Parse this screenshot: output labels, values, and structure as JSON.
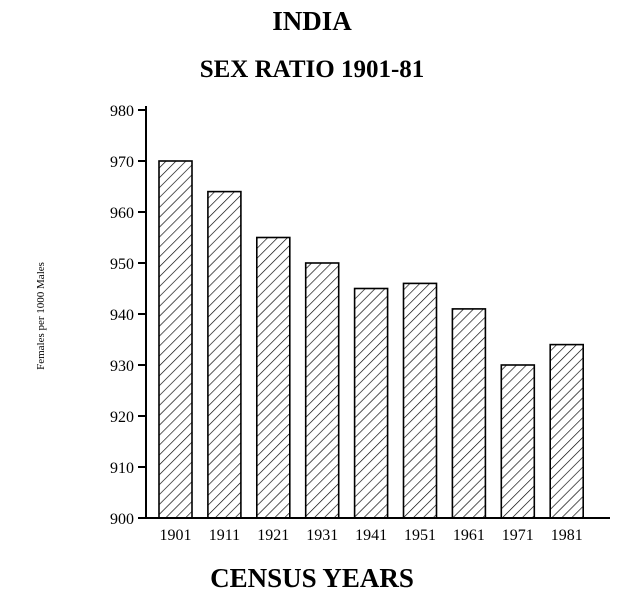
{
  "chart_data": {
    "type": "bar",
    "title": "INDIA",
    "subtitle": "SEX RATIO 1901-81",
    "xlabel": "CENSUS YEARS",
    "ylabel": "Females per 1000 Males",
    "categories": [
      "1901",
      "1911",
      "1921",
      "1931",
      "1941",
      "1951",
      "1961",
      "1971",
      "1981"
    ],
    "values": [
      970,
      964,
      955,
      950,
      945,
      946,
      941,
      930,
      934
    ],
    "ylim": [
      900,
      980
    ],
    "yticks": [
      "900",
      "910",
      "920",
      "930",
      "940",
      "950",
      "960",
      "970",
      "980"
    ],
    "grid": false,
    "bar_fill": "hatched",
    "colors": {
      "ink": "#000000",
      "background": "#ffffff"
    }
  }
}
